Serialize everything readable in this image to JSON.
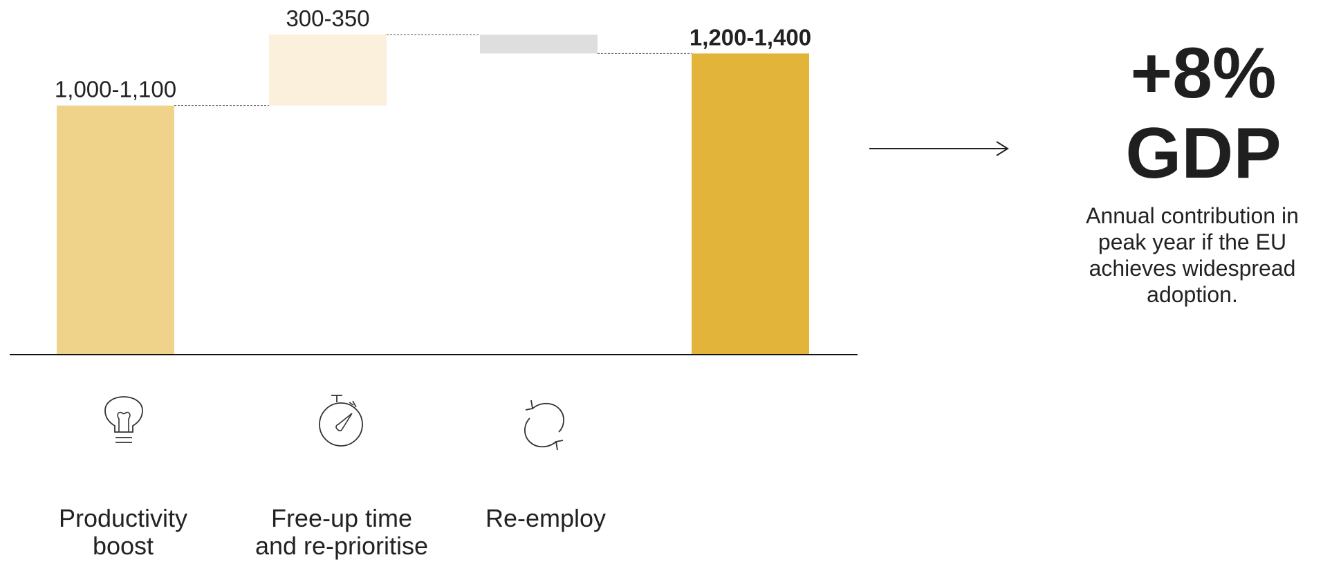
{
  "chart_data": {
    "type": "bar",
    "categories": [
      "Productivity boost",
      "Free-up time and re-prioritise",
      "Re-employ",
      ""
    ],
    "bars": [
      {
        "kind": "base",
        "low": 0,
        "high": 1050,
        "label": "1,000-1,100",
        "color": "#efd38a"
      },
      {
        "kind": "delta",
        "low": 1050,
        "high": 1350,
        "label": "300-350",
        "color": "#fbf0dc"
      },
      {
        "kind": "delta",
        "low": 1270,
        "high": 1350,
        "label": "",
        "color": "#dedede"
      },
      {
        "kind": "total",
        "low": 0,
        "high": 1270,
        "label": "1,200-1,400",
        "color": "#e2b43a"
      }
    ],
    "ylim": [
      0,
      1350
    ],
    "grid": false,
    "title": "",
    "xlabel": "",
    "ylabel": ""
  },
  "labels": {
    "cat1": "Productivity\nboost",
    "cat2": "Free-up time\nand re-prioritise",
    "cat3": "Re-employ"
  },
  "icons": [
    "lightbulb-icon",
    "stopwatch-icon",
    "refresh-icon"
  ],
  "summary": {
    "headline_line1": "+8%",
    "headline_line2": "GDP",
    "description": "Annual contribution in peak year if the EU achieves widespread adoption."
  }
}
